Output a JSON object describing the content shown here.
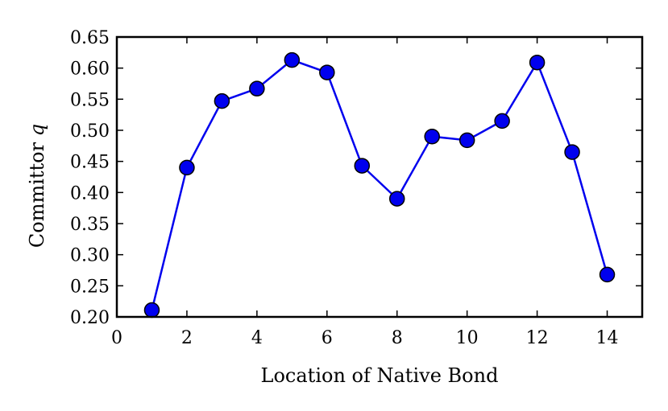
{
  "chart_data": {
    "type": "line",
    "title": "",
    "xlabel": "Location of Native Bond",
    "ylabel": "Committor",
    "ylabel_var": "q",
    "xlim": [
      0,
      15
    ],
    "ylim": [
      0.2,
      0.65
    ],
    "xticks": [
      0,
      2,
      4,
      6,
      8,
      10,
      12,
      14
    ],
    "yticks": [
      0.2,
      0.25,
      0.3,
      0.35,
      0.4,
      0.45,
      0.5,
      0.55,
      0.6,
      0.65
    ],
    "ytick_labels": [
      "0.20",
      "0.25",
      "0.30",
      "0.35",
      "0.40",
      "0.45",
      "0.50",
      "0.55",
      "0.60",
      "0.65"
    ],
    "grid": false,
    "series": [
      {
        "color": "#0000ee",
        "marker": "circle",
        "x": [
          1,
          2,
          3,
          4,
          5,
          6,
          7,
          8,
          9,
          10,
          11,
          12,
          13,
          14
        ],
        "y": [
          0.211,
          0.44,
          0.547,
          0.567,
          0.613,
          0.593,
          0.443,
          0.39,
          0.49,
          0.484,
          0.515,
          0.609,
          0.465,
          0.268
        ]
      }
    ]
  }
}
